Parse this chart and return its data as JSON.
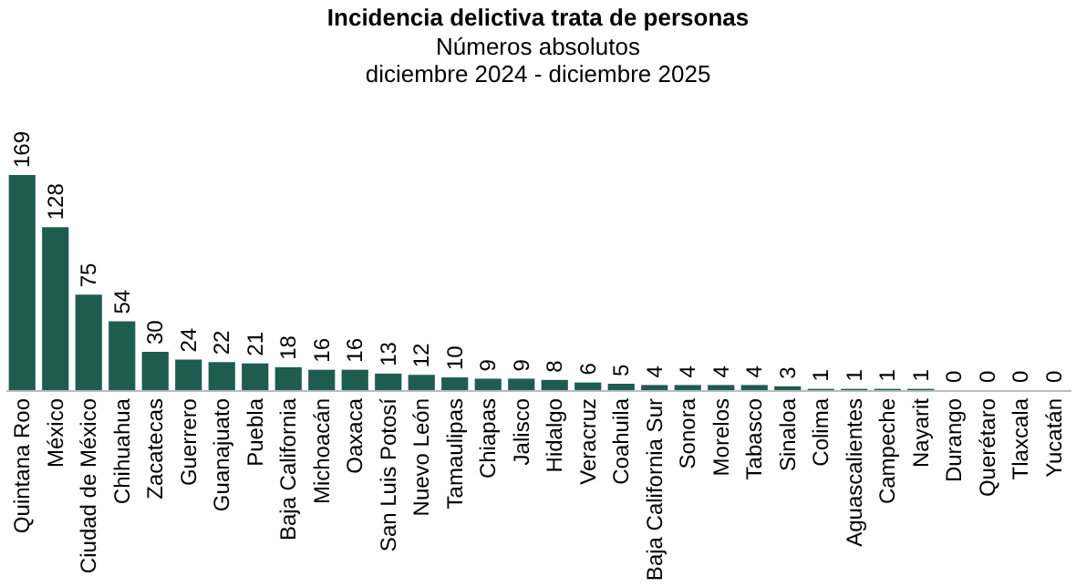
{
  "chart_data": {
    "type": "bar",
    "title": "Incidencia delictiva trata de personas",
    "subtitle": "Números absolutos\ndiciembre 2024 - diciembre 2025",
    "categories": [
      "Quintana Roo",
      "México",
      "Ciudad de México",
      "Chihuahua",
      "Zacatecas",
      "Guerrero",
      "Guanajuato",
      "Puebla",
      "Baja California",
      "Michoacán",
      "Oaxaca",
      "San Luis Potosí",
      "Nuevo León",
      "Tamaulipas",
      "Chiapas",
      "Jalisco",
      "Hidalgo",
      "Veracruz",
      "Coahuila",
      "Baja California Sur",
      "Sonora",
      "Morelos",
      "Tabasco",
      "Sinaloa",
      "Colima",
      "Aguascalientes",
      "Campeche",
      "Nayarit",
      "Durango",
      "Querétaro",
      "Tlaxcala",
      "Yucatán"
    ],
    "values": [
      169,
      128,
      75,
      54,
      30,
      24,
      22,
      21,
      18,
      16,
      16,
      13,
      12,
      10,
      9,
      9,
      8,
      6,
      5,
      4,
      4,
      4,
      4,
      3,
      1,
      1,
      1,
      1,
      0,
      0,
      0,
      0
    ],
    "color": "#1f5c50",
    "data_labels": true
  }
}
